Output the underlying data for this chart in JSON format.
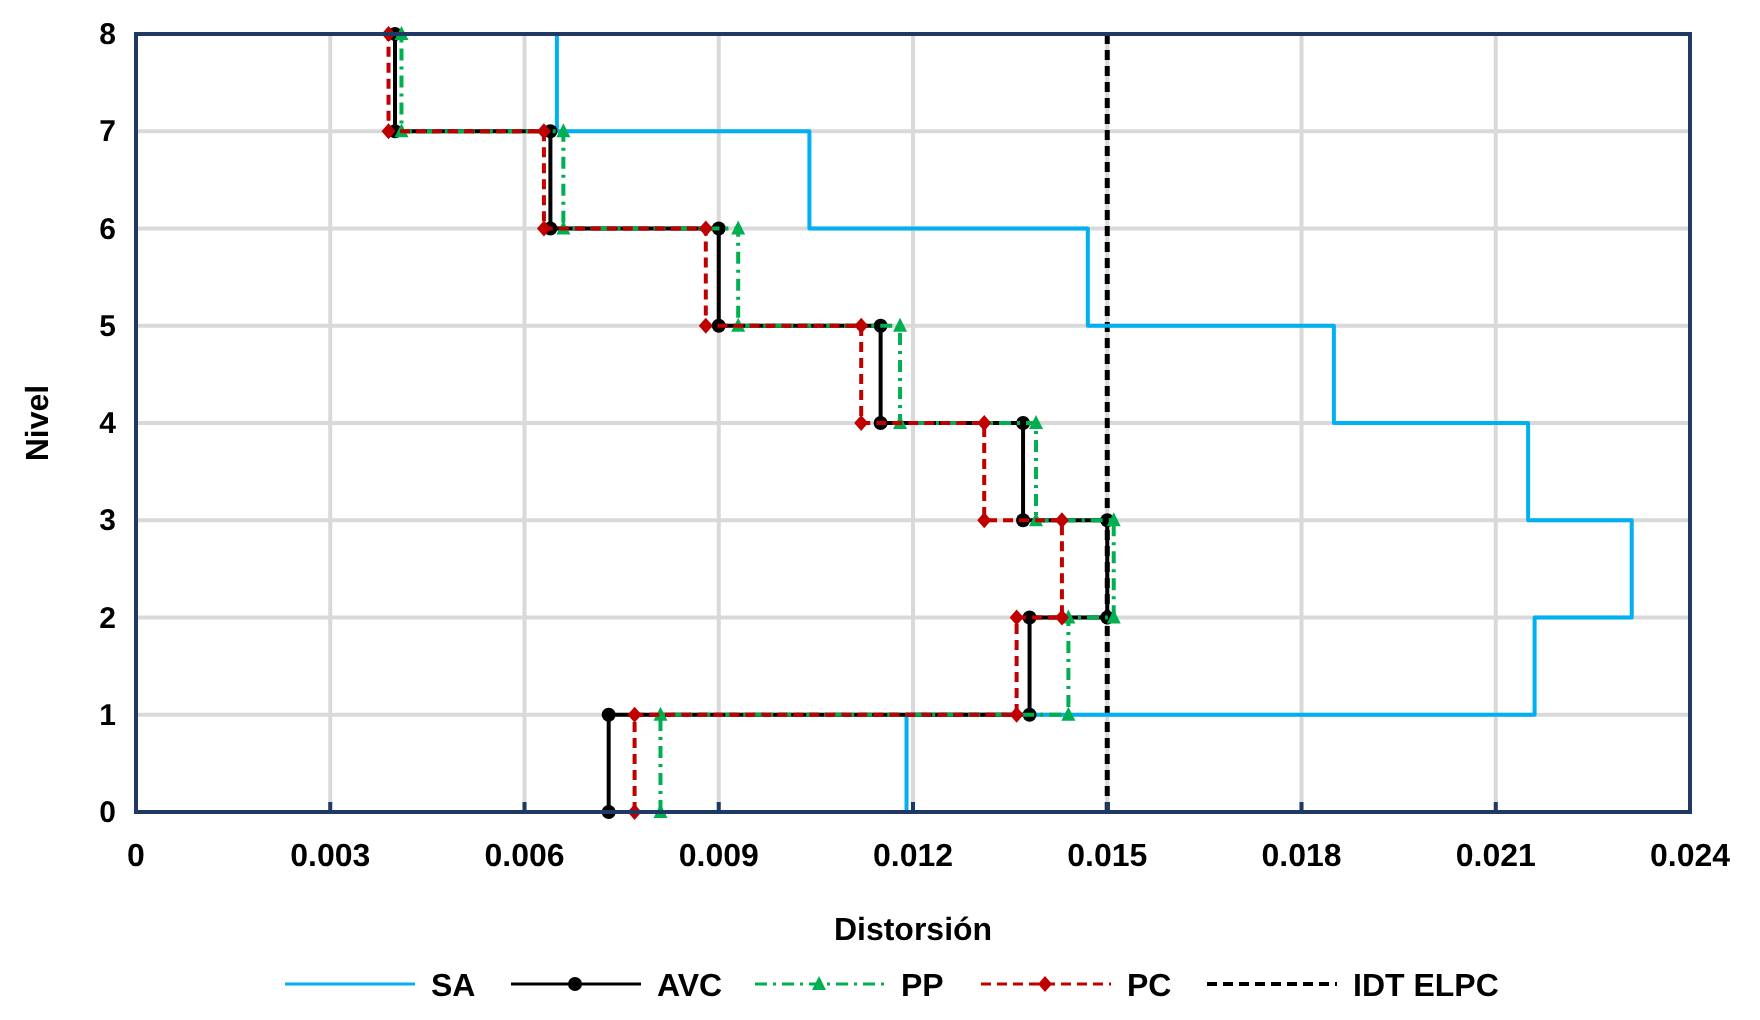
{
  "chart_data": {
    "type": "line",
    "xlabel": "Distorsión",
    "ylabel": "Nivel",
    "xlim": [
      0,
      0.024
    ],
    "xticks": [
      0,
      0.003,
      0.006,
      0.009,
      0.012,
      0.015,
      0.018,
      0.021,
      0.024
    ],
    "ylim": [
      0,
      8
    ],
    "yticks": [
      0,
      1,
      2,
      3,
      4,
      5,
      6,
      7,
      8
    ],
    "grid": true,
    "legend": "bottom",
    "series": [
      {
        "name": "SA",
        "color": "#00b0f0",
        "marker": "none",
        "line_style": "solid",
        "x": [
          0.0119,
          0.0119,
          0.0216,
          0.0216,
          0.0231,
          0.0231,
          0.0215,
          0.0215,
          0.0185,
          0.0185,
          0.0147,
          0.0147,
          0.0104,
          0.0104,
          0.0065,
          0.0065
        ],
        "values": [
          0,
          1,
          1,
          2,
          2,
          3,
          3,
          4,
          4,
          5,
          5,
          6,
          6,
          7,
          7,
          8
        ]
      },
      {
        "name": "AVC",
        "color": "#000000",
        "marker": "circle",
        "line_style": "solid",
        "x": [
          0.0073,
          0.0073,
          0.0138,
          0.0138,
          0.015,
          0.015,
          0.0137,
          0.0137,
          0.0115,
          0.0115,
          0.009,
          0.009,
          0.0064,
          0.0064,
          0.004,
          0.004
        ],
        "values": [
          0,
          1,
          1,
          2,
          2,
          3,
          3,
          4,
          4,
          5,
          5,
          6,
          6,
          7,
          7,
          8
        ]
      },
      {
        "name": "PP",
        "color": "#00b050",
        "marker": "triangle",
        "line_style": "dashdot",
        "x": [
          0.0081,
          0.0081,
          0.0144,
          0.0144,
          0.0151,
          0.0151,
          0.0139,
          0.0139,
          0.0118,
          0.0118,
          0.0093,
          0.0093,
          0.0066,
          0.0066,
          0.0041,
          0.0041
        ],
        "values": [
          0,
          1,
          1,
          2,
          2,
          3,
          3,
          4,
          4,
          5,
          5,
          6,
          6,
          7,
          7,
          8
        ]
      },
      {
        "name": "PC",
        "color": "#c00000",
        "marker": "diamond",
        "line_style": "dashed",
        "x": [
          0.0077,
          0.0077,
          0.0136,
          0.0136,
          0.0143,
          0.0143,
          0.0131,
          0.0131,
          0.0112,
          0.0112,
          0.0088,
          0.0088,
          0.0063,
          0.0063,
          0.0039,
          0.0039
        ],
        "values": [
          0,
          1,
          1,
          2,
          2,
          3,
          3,
          4,
          4,
          5,
          5,
          6,
          6,
          7,
          7,
          8
        ]
      }
    ],
    "ref_lines": [
      {
        "axis": "x",
        "value": 0.015,
        "label": "IDT ELPC",
        "color": "#000000",
        "line_style": "dashed"
      }
    ]
  }
}
